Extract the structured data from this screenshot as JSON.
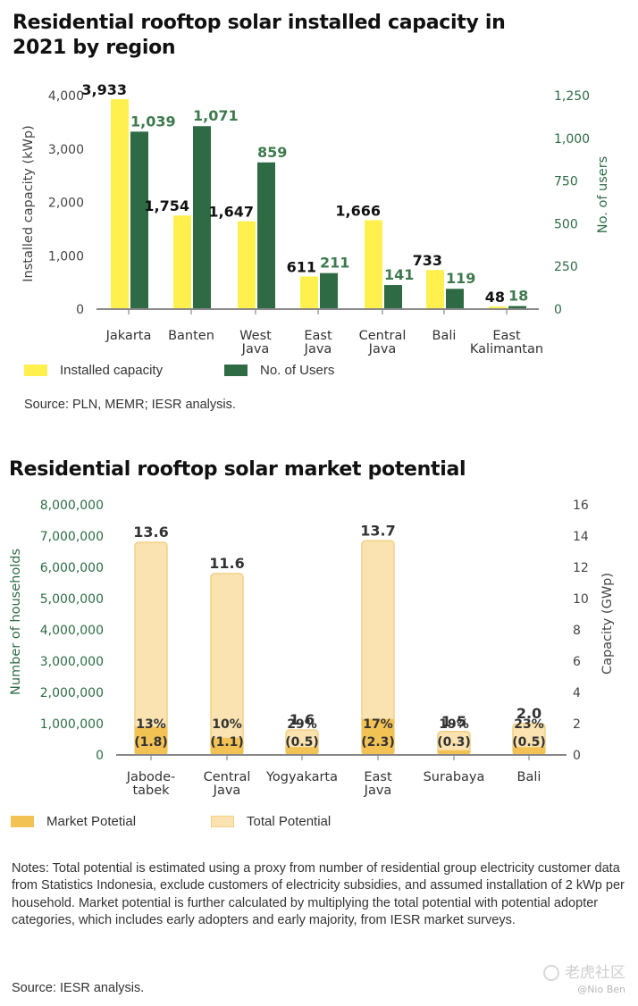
{
  "chart_data": [
    {
      "type": "bar",
      "title": "Residential rooftop solar installed capacity in 2021 by region",
      "categories": [
        [
          "Jakarta"
        ],
        [
          "Banten"
        ],
        [
          "West",
          "Java"
        ],
        [
          "East",
          "Java"
        ],
        [
          "Central",
          "Java"
        ],
        [
          "Bali"
        ],
        [
          "East",
          "Kalimantan"
        ]
      ],
      "series": [
        {
          "name": "Installed capacity",
          "axis": "left",
          "color": "#FFF04D",
          "values": [
            3933,
            1754,
            1647,
            611,
            1666,
            733,
            48
          ],
          "labels": [
            "3,933",
            "1,754",
            "1,647",
            "611",
            "1,666",
            "733",
            "48"
          ]
        },
        {
          "name": "No. of Users",
          "axis": "right",
          "color": "#2E6B45",
          "values": [
            1039,
            1071,
            859,
            211,
            141,
            119,
            18
          ],
          "labels": [
            "1,039",
            "1,071",
            "859",
            "211",
            "141",
            "119",
            "18"
          ]
        }
      ],
      "ylabel": "Installed capacity (kWp)",
      "y2label": "No. of users",
      "ylim": [
        0,
        4000
      ],
      "y2lim": [
        0,
        1250
      ],
      "yticks": [
        "0",
        "1,000",
        "2,000",
        "3,000",
        "4,000"
      ],
      "y2ticks": [
        "0",
        "250",
        "500",
        "750",
        "1,000",
        "1,250"
      ],
      "legend": [
        "Installed capacity",
        "No. of Users"
      ],
      "source": "Source: PLN, MEMR; IESR analysis."
    },
    {
      "type": "bar",
      "title": "Residential rooftop solar market potential",
      "categories": [
        [
          "Jabode-",
          "tabek"
        ],
        [
          "Central",
          "Java"
        ],
        [
          "Yogyakarta"
        ],
        [
          "East",
          "Java"
        ],
        [
          "Surabaya"
        ],
        [
          "Bali"
        ]
      ],
      "series": [
        {
          "name": "Total Potential",
          "axis": "right",
          "color": "#FAE3B0",
          "values": [
            13.6,
            11.6,
            1.6,
            13.7,
            1.5,
            2.0
          ],
          "labels": [
            "13.6",
            "11.6",
            "1.6",
            "13.7",
            "1.5",
            "2.0"
          ]
        },
        {
          "name": "Market Potetial",
          "axis": "right",
          "color": "#F3C255",
          "values": [
            1.8,
            1.1,
            0.5,
            2.3,
            0.3,
            0.5
          ],
          "labels": [
            "(1.8)",
            "(1.1)",
            "(0.5)",
            "(2.3)",
            "(0.3)",
            "(0.5)"
          ],
          "percent": [
            "13%",
            "10%",
            "29%",
            "17%",
            "19%",
            "23%"
          ]
        }
      ],
      "ylabel": "Number of households",
      "y2label": "Capacity (GWp)",
      "ylim": [
        0,
        8000000
      ],
      "y2lim": [
        0,
        16
      ],
      "yticks": [
        "0",
        "1,000,000",
        "2,000,000",
        "3,000,000",
        "4,000,000",
        "5,000,000",
        "6,000,000",
        "7,000,000",
        "8,000,000"
      ],
      "y2ticks": [
        "0",
        "2",
        "4",
        "6",
        "8",
        "10",
        "12",
        "14",
        "16"
      ],
      "legend": [
        "Market Potetial",
        "Total Potential"
      ]
    }
  ],
  "notes": "Notes: Total potential is estimated using a proxy from number of residential group electricity customer data from Statistics Indonesia, exclude customers of electricity subsidies, and assumed installation of 2 kWp per household. Market potential is further calculated by multiplying the total potential with potential adopter categories, which includes early adopters and early majority, from IESR market surveys.",
  "source2": "Source: IESR analysis.",
  "watermark": {
    "brand": "老虎社区",
    "author": "@Nio Ben"
  }
}
